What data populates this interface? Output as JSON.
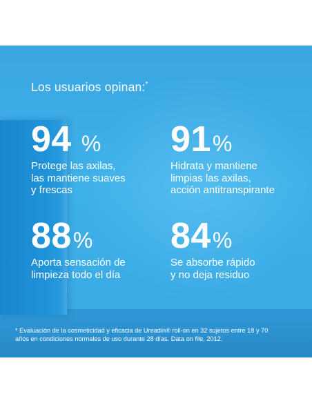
{
  "heading": {
    "text": "Los usuarios opinan:",
    "marker": "*"
  },
  "stats": [
    {
      "value": "94",
      "unit": "%",
      "lines": [
        "Protege las axilas,",
        "las mantiene suaves",
        "y frescas"
      ]
    },
    {
      "value": "91",
      "unit": "%",
      "lines": [
        "Hidrata y mantiene",
        "limpias las axilas,",
        "acción antitranspirante"
      ]
    },
    {
      "value": "88",
      "unit": "%",
      "lines": [
        "Aporta sensación de",
        "limpieza todo el día"
      ]
    },
    {
      "value": "84",
      "unit": "%",
      "lines": [
        "Se absorbe rápido",
        "y no deja residuo"
      ]
    }
  ],
  "footnote": {
    "line1": "* Evaluación de la cosmeticidad y eficacia de Ureadin® roll-on en 32 sujetos entre 18 y 70",
    "line2": "años en condiciones normales de uso durante 28 días. Data on file, 2012."
  },
  "colors": {
    "background": "#3fb1ea",
    "text": "#ffffff",
    "product": "#1f93d9",
    "page": "#ffffff"
  }
}
